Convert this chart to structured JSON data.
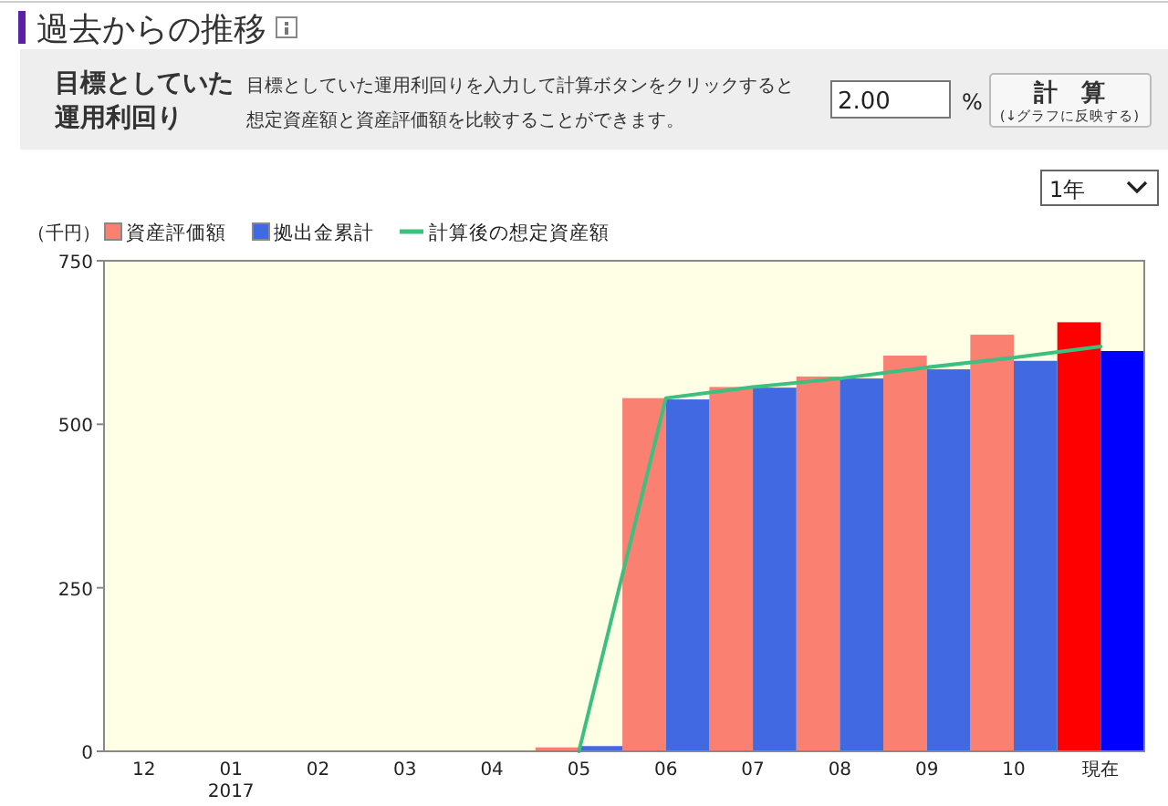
{
  "chart_data": [
    {
      "type": "other",
      "title": "過去からの推移",
      "annotations": [
        "目標としていた運用利回り",
        "目標としていた運用利回りを入力して計算ボタンをクリックすると想定資産額と資産評価額を比較することができます。",
        "2.00",
        "%",
        "計　算",
        "(↓グラフに反映する)"
      ]
    },
    {
      "type": "bar",
      "ylabel": "（千円）",
      "annotations": [
        "1年"
      ],
      "categories": [
        "12",
        "01\n2017",
        "02",
        "03",
        "04",
        "05",
        "06",
        "07",
        "08",
        "09",
        "10",
        "現在"
      ],
      "ylim": [
        0,
        750
      ],
      "yticks": [
        0,
        250,
        500,
        750
      ],
      "legend": "top left",
      "series": [
        {
          "name": "資産評価額",
          "type": "bar",
          "color": "#fa8072",
          "colors": [
            "#fa8072",
            "#fa8072",
            "#fa8072",
            "#fa8072",
            "#fa8072",
            "#fa8072",
            "#fa8072",
            "#fa8072",
            "#fa8072",
            "#fa8072",
            "#fa8072",
            "#ff0000"
          ],
          "values": [
            null,
            null,
            null,
            null,
            null,
            6,
            540,
            557,
            573,
            605,
            637,
            656
          ]
        },
        {
          "name": "拠出金累計",
          "type": "bar",
          "color": "#4169e1",
          "colors": [
            "#4169e1",
            "#4169e1",
            "#4169e1",
            "#4169e1",
            "#4169e1",
            "#4169e1",
            "#4169e1",
            "#4169e1",
            "#4169e1",
            "#4169e1",
            "#4169e1",
            "#0000ff"
          ],
          "values": [
            null,
            null,
            null,
            null,
            null,
            8,
            538,
            556,
            570,
            584,
            597,
            612
          ]
        },
        {
          "name": "計算後の想定資産額",
          "type": "line",
          "color": "#3dbf7f",
          "values": [
            null,
            null,
            null,
            null,
            null,
            0,
            540,
            557,
            570,
            587,
            602,
            619
          ]
        }
      ]
    }
  ]
}
